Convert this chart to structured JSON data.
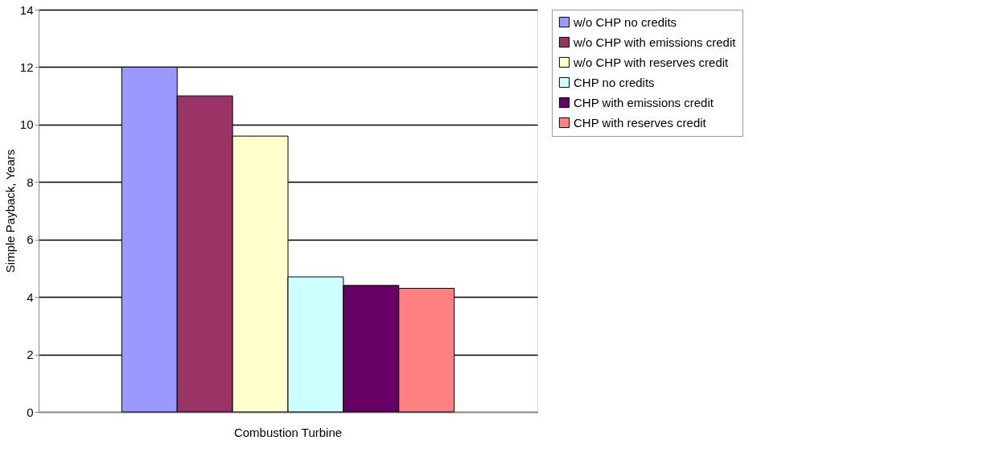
{
  "chart_data": {
    "type": "bar",
    "ylabel": "Simple Payback, Years",
    "categories": [
      "Combustion Turbine"
    ],
    "series": [
      {
        "name": "w/o CHP no credits",
        "color": "#9999ff",
        "values": [
          12.0
        ]
      },
      {
        "name": "w/o CHP with emissions credit",
        "color": "#993366",
        "values": [
          11.0
        ]
      },
      {
        "name": "w/o CHP with reserves credit",
        "color": "#ffffcc",
        "values": [
          9.6
        ]
      },
      {
        "name": "CHP no credits",
        "color": "#ccffff",
        "values": [
          4.7
        ]
      },
      {
        "name": "CHP with emissions credit",
        "color": "#660066",
        "values": [
          4.4
        ]
      },
      {
        "name": "CHP with reserves credit",
        "color": "#ff8080",
        "values": [
          4.3
        ]
      }
    ],
    "ylim": [
      0,
      14
    ],
    "yticks": [
      0,
      2,
      4,
      6,
      8,
      10,
      12,
      14
    ],
    "grid": "y",
    "legend": "right"
  }
}
